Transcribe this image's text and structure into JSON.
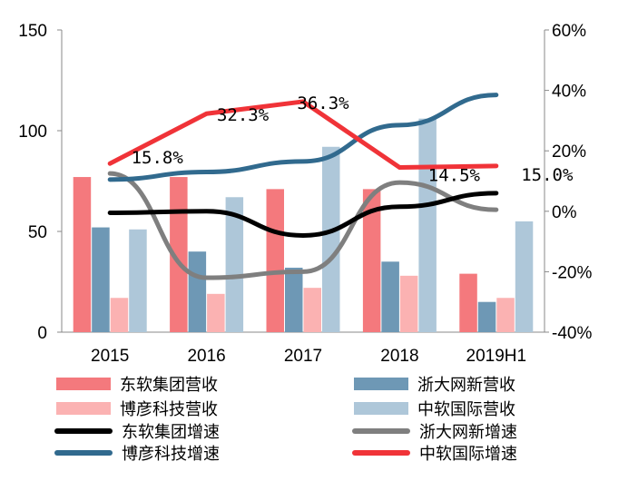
{
  "chart_data": {
    "type": "bar+line",
    "categories": [
      "2015",
      "2016",
      "2017",
      "2018",
      "2019H1"
    ],
    "left_axis": {
      "ylim": [
        0,
        150
      ],
      "ticks": [
        "0",
        "50",
        "100",
        "150"
      ]
    },
    "right_axis": {
      "ylim": [
        -40,
        60
      ],
      "ticks": [
        "-40%",
        "-20%",
        "0%",
        "20%",
        "40%",
        "60%"
      ]
    },
    "bar_series": [
      {
        "name": "东软集团营收",
        "color": "#f4797d",
        "values": [
          77,
          77,
          71,
          71,
          29
        ]
      },
      {
        "name": "浙大网新营收",
        "color": "#6e98b5",
        "values": [
          52,
          40,
          32,
          35,
          15
        ]
      },
      {
        "name": "博彦科技营收",
        "color": "#fbb2b2",
        "values": [
          17,
          19,
          22,
          28,
          17
        ]
      },
      {
        "name": "中软国际营收",
        "color": "#aec7d9",
        "values": [
          51,
          67,
          92,
          106,
          55
        ]
      }
    ],
    "line_series": [
      {
        "name": "东软集团增速",
        "color": "#000000",
        "values": [
          -0.5,
          0,
          -8,
          1.5,
          6
        ]
      },
      {
        "name": "浙大网新增速",
        "color": "#7f7f7f",
        "values": [
          12.5,
          -22,
          -20,
          9.5,
          0.5
        ]
      },
      {
        "name": "博彦科技增速",
        "color": "#316a8e",
        "values": [
          10.5,
          13,
          16.5,
          28.5,
          38.5
        ]
      },
      {
        "name": "中软国际增速",
        "color": "#f03338",
        "values": [
          15.8,
          32.3,
          36.3,
          14.5,
          15.0
        ]
      }
    ],
    "annotations": [
      {
        "text": "15.8%",
        "category": "2015"
      },
      {
        "text": "32.3%",
        "category": "2016"
      },
      {
        "text": "36.3%",
        "category": "2017"
      },
      {
        "text": "14.5%",
        "category": "2018"
      },
      {
        "text": "15.0%",
        "category": "2019H1"
      }
    ]
  }
}
